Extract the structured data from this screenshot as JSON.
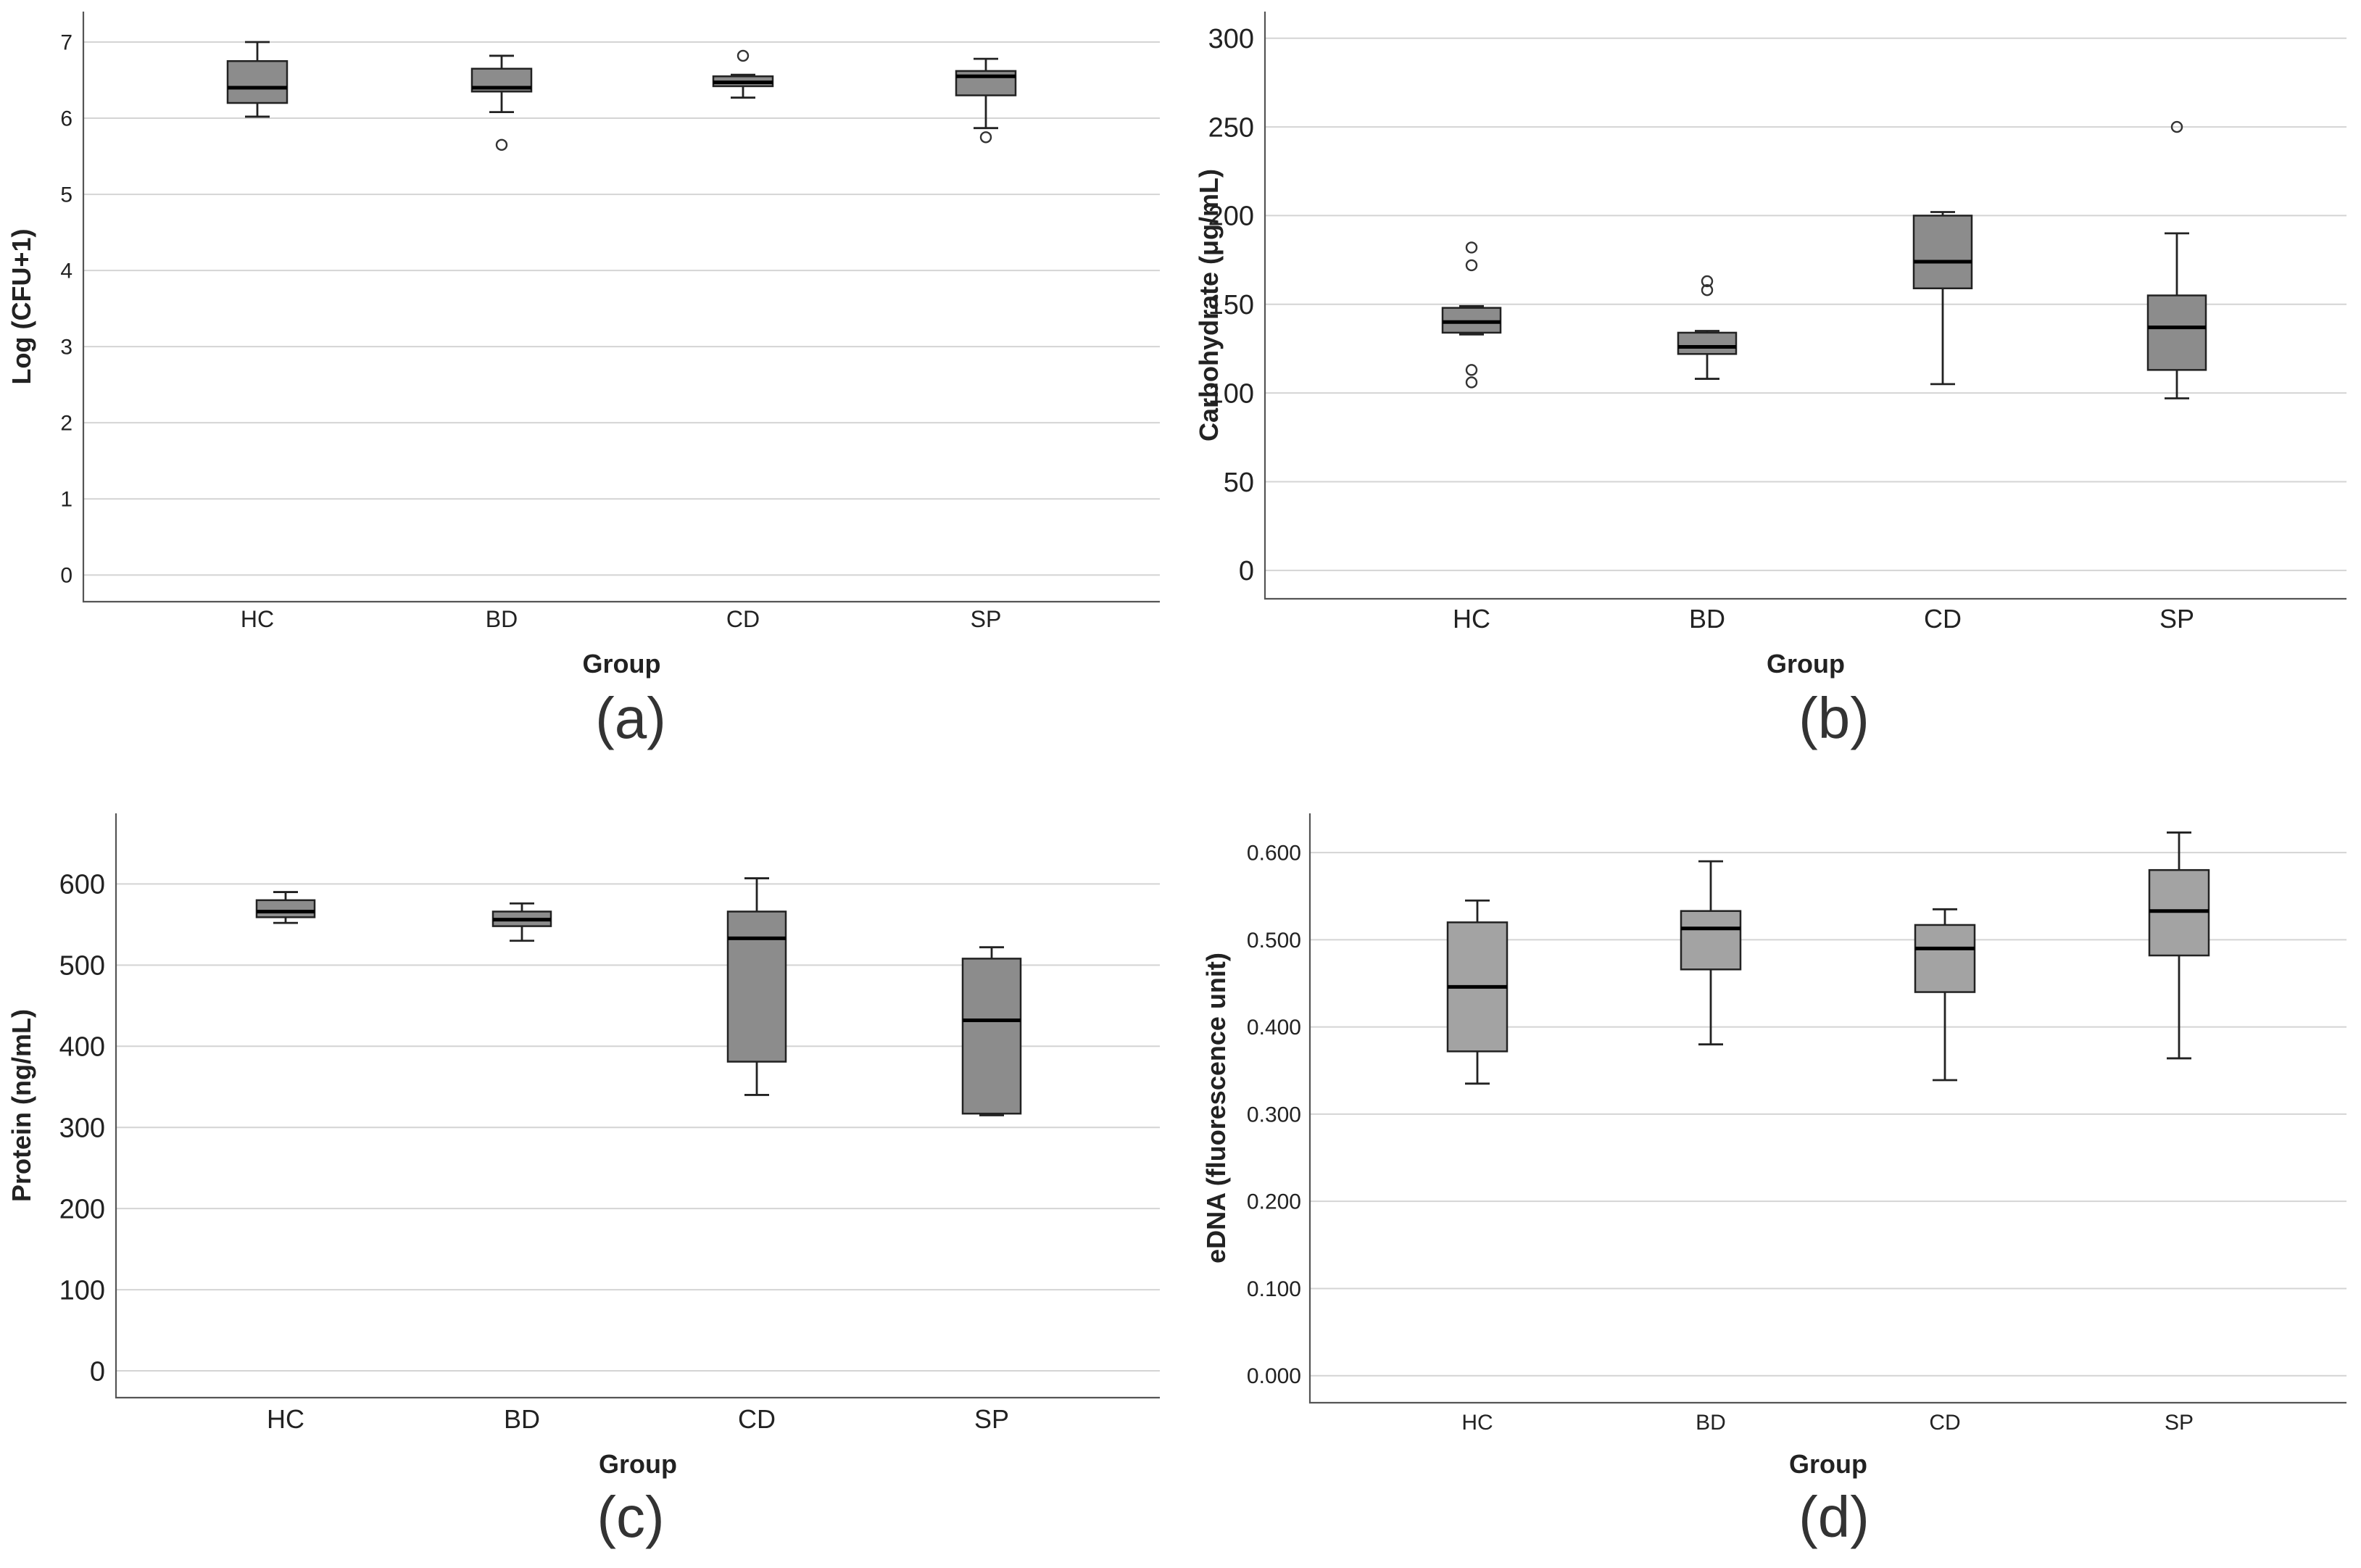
{
  "chart_data": [
    {
      "type": "box",
      "panel_label": "(a)",
      "categories": [
        "HC",
        "BD",
        "CD",
        "SP"
      ],
      "xlabel": "Group",
      "ylabel": "Log (CFU+1)",
      "ylim": [
        -0.35,
        7.4
      ],
      "yticks": [
        0,
        1,
        2,
        3,
        4,
        5,
        6,
        7
      ],
      "ytick_labels": [
        "0",
        "1",
        "2",
        "3",
        "4",
        "5",
        "6",
        "7"
      ],
      "boxes": [
        {
          "group": "HC",
          "min": 6.02,
          "q1": 6.2,
          "median": 6.4,
          "q3": 6.75,
          "max": 7.0,
          "outliers": []
        },
        {
          "group": "BD",
          "min": 6.08,
          "q1": 6.35,
          "median": 6.4,
          "q3": 6.65,
          "max": 6.82,
          "outliers": [
            5.65
          ]
        },
        {
          "group": "CD",
          "min": 6.27,
          "q1": 6.42,
          "median": 6.47,
          "q3": 6.55,
          "max": 6.57,
          "outliers": [
            6.82
          ]
        },
        {
          "group": "SP",
          "min": 5.87,
          "q1": 6.3,
          "median": 6.55,
          "q3": 6.62,
          "max": 6.78,
          "outliers": [
            5.75
          ]
        }
      ]
    },
    {
      "type": "box",
      "panel_label": "(b)",
      "categories": [
        "HC",
        "BD",
        "CD",
        "SP"
      ],
      "xlabel": "Group",
      "ylabel": "Carbohydrate (μg/mL)",
      "ylim": [
        -16,
        315
      ],
      "yticks": [
        0,
        50,
        100,
        150,
        200,
        250,
        300
      ],
      "ytick_labels": [
        "0",
        "50",
        "100",
        "150",
        "200",
        "250",
        "300"
      ],
      "boxes": [
        {
          "group": "HC",
          "min": 133,
          "q1": 134,
          "median": 140,
          "q3": 148,
          "max": 149,
          "outliers": [
            182,
            172,
            113,
            106
          ]
        },
        {
          "group": "BD",
          "min": 108,
          "q1": 122,
          "median": 126,
          "q3": 134,
          "max": 135,
          "outliers": [
            163,
            158
          ]
        },
        {
          "group": "CD",
          "min": 105,
          "q1": 159,
          "median": 174,
          "q3": 200,
          "max": 202,
          "outliers": []
        },
        {
          "group": "SP",
          "min": 97,
          "q1": 113,
          "median": 137,
          "q3": 155,
          "max": 190,
          "outliers": [
            250
          ]
        }
      ]
    },
    {
      "type": "box",
      "panel_label": "(c)",
      "categories": [
        "HC",
        "BD",
        "CD",
        "SP"
      ],
      "xlabel": "Group",
      "ylabel": "Protein (ng/mL)",
      "ylim": [
        -33,
        687
      ],
      "yticks": [
        0,
        100,
        200,
        300,
        400,
        500,
        600
      ],
      "ytick_labels": [
        "0",
        "100",
        "200",
        "300",
        "400",
        "500",
        "600"
      ],
      "boxes": [
        {
          "group": "HC",
          "min": 552,
          "q1": 559,
          "median": 566,
          "q3": 580,
          "max": 590,
          "outliers": []
        },
        {
          "group": "BD",
          "min": 530,
          "q1": 548,
          "median": 556,
          "q3": 566,
          "max": 576,
          "outliers": []
        },
        {
          "group": "CD",
          "min": 340,
          "q1": 381,
          "median": 533,
          "q3": 566,
          "max": 607,
          "outliers": []
        },
        {
          "group": "SP",
          "min": 315,
          "q1": 317,
          "median": 432,
          "q3": 508,
          "max": 522,
          "outliers": []
        }
      ]
    },
    {
      "type": "box",
      "panel_label": "(d)",
      "categories": [
        "HC",
        "BD",
        "CD",
        "SP"
      ],
      "xlabel": "Group",
      "ylabel": "eDNA (fluorescence unit)",
      "ylim": [
        -0.031,
        0.645
      ],
      "yticks": [
        0.0,
        0.1,
        0.2,
        0.3,
        0.4,
        0.5,
        0.6
      ],
      "ytick_labels": [
        "0.000",
        "0.100",
        "0.200",
        "0.300",
        "0.400",
        "0.500",
        "0.600"
      ],
      "boxes": [
        {
          "group": "HC",
          "min": 0.335,
          "q1": 0.372,
          "median": 0.446,
          "q3": 0.52,
          "max": 0.545,
          "outliers": []
        },
        {
          "group": "BD",
          "min": 0.38,
          "q1": 0.466,
          "median": 0.513,
          "q3": 0.533,
          "max": 0.59,
          "outliers": []
        },
        {
          "group": "CD",
          "min": 0.339,
          "q1": 0.44,
          "median": 0.49,
          "q3": 0.517,
          "max": 0.535,
          "outliers": []
        },
        {
          "group": "SP",
          "min": 0.364,
          "q1": 0.482,
          "median": 0.533,
          "q3": 0.58,
          "max": 0.623,
          "outliers": []
        }
      ]
    }
  ]
}
